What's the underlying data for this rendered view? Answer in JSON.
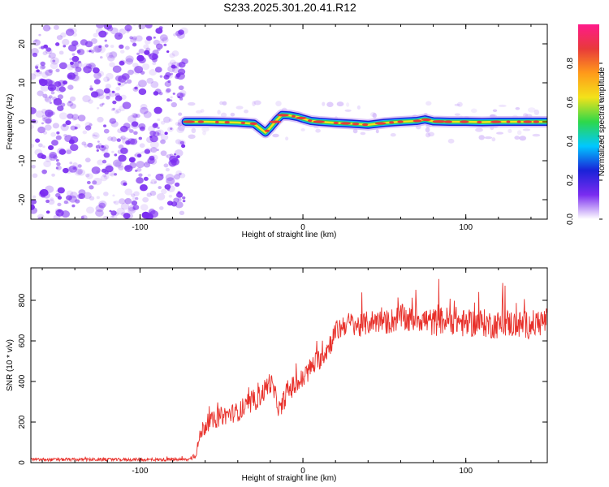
{
  "title": "S233.2025.301.20.41.R12",
  "colors": {
    "snr_line": "#e8302a",
    "ridge_core": "#e83a3a",
    "ridge_mid": "#f3e21a",
    "ridge_outer": "#28c96a",
    "ridge_edge": "#1a22d8",
    "noise_purple": "#7a2cf0"
  },
  "chart_data": [
    {
      "type": "heatmap",
      "title": "S233.2025.301.20.41.R12",
      "xlabel": "Height of straight line (km)",
      "ylabel": "Frequency (Hz)",
      "xlim": [
        -167,
        150
      ],
      "ylim": [
        -25,
        25
      ],
      "xticks": [
        -100,
        0,
        100
      ],
      "yticks": [
        -20,
        -10,
        0,
        10,
        20
      ],
      "xtick_labels": [
        "-100",
        "0",
        "100"
      ],
      "ytick_labels": [
        "-20",
        "-10",
        "0",
        "10",
        "20"
      ],
      "noise_region_x": [
        -167,
        -72
      ],
      "ridge": {
        "x": [
          -72,
          -60,
          -40,
          -30,
          -26,
          -23,
          -20,
          -16,
          -13,
          -8,
          -3,
          0,
          5,
          10,
          20,
          30,
          40,
          50,
          60,
          70,
          75,
          80,
          90,
          100,
          110,
          120,
          130,
          140,
          150
        ],
        "freq": [
          0,
          0,
          -0.2,
          -0.5,
          -1.8,
          -2.8,
          -1.5,
          0.5,
          1.7,
          1.6,
          1.2,
          0.8,
          0.2,
          0,
          -0.3,
          -0.5,
          -0.8,
          -0.3,
          0,
          0.2,
          0.6,
          0.1,
          0,
          0,
          -0.1,
          0,
          0,
          0,
          0
        ]
      },
      "colorbar": {
        "label": "Normalized spectral amplitude",
        "range": [
          0.0,
          1.0
        ],
        "ticks": [
          0.0,
          0.2,
          0.4,
          0.6,
          0.8
        ],
        "tick_labels": [
          "0.0",
          "0.2",
          "0.4",
          "0.6",
          "0.8"
        ],
        "colormap": [
          "#ffffff",
          "#7a2cf0",
          "#1a22d8",
          "#00c8ff",
          "#2ed84a",
          "#f3e21a",
          "#ff9a1a",
          "#e83a3a",
          "#ff1a8a"
        ]
      }
    },
    {
      "type": "line",
      "xlabel": "Height of straight line (km)",
      "ylabel": "SNR (10 * v/v)",
      "xlim": [
        -167,
        150
      ],
      "ylim": [
        0,
        960
      ],
      "xticks": [
        -100,
        0,
        100
      ],
      "yticks": [
        0,
        200,
        400,
        600,
        800
      ],
      "xtick_labels": [
        "-100",
        "0",
        "100"
      ],
      "ytick_labels": [
        "0",
        "200",
        "400",
        "600",
        "800"
      ],
      "series": [
        {
          "name": "SNR",
          "x": [
            -167,
            -150,
            -130,
            -110,
            -90,
            -70,
            -66,
            -62,
            -58,
            -54,
            -50,
            -45,
            -40,
            -35,
            -30,
            -25,
            -20,
            -17,
            -14,
            -10,
            -5,
            0,
            5,
            10,
            15,
            20,
            25,
            30,
            35,
            40,
            45,
            50,
            55,
            60,
            65,
            70,
            75,
            80,
            85,
            90,
            95,
            100,
            105,
            110,
            115,
            120,
            125,
            130,
            135,
            140,
            145,
            150
          ],
          "y": [
            15,
            15,
            15,
            15,
            15,
            15,
            40,
            160,
            200,
            210,
            230,
            240,
            250,
            270,
            300,
            340,
            400,
            330,
            250,
            350,
            380,
            410,
            470,
            510,
            560,
            640,
            680,
            690,
            670,
            690,
            700,
            690,
            700,
            720,
            700,
            720,
            700,
            690,
            700,
            700,
            700,
            680,
            690,
            690,
            680,
            680,
            690,
            680,
            680,
            680,
            690,
            700
          ],
          "noise_amplitude": [
            15,
            15,
            15,
            15,
            15,
            15,
            40,
            90,
            90,
            90,
            95,
            95,
            95,
            100,
            100,
            110,
            110,
            100,
            100,
            110,
            110,
            110,
            110,
            110,
            115,
            115,
            115,
            110,
            120,
            120,
            120,
            120,
            130,
            130,
            130,
            140,
            140,
            140,
            140,
            140,
            140,
            140,
            140,
            140,
            140,
            140,
            140,
            140,
            140,
            140,
            140,
            140
          ]
        }
      ]
    }
  ]
}
